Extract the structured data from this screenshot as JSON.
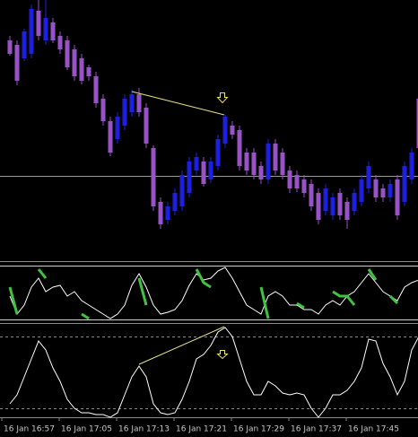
{
  "chart_data": [
    {
      "type": "candlestick",
      "open": [
        245,
        240,
        225,
        230,
        278,
        245,
        265,
        250,
        245,
        235,
        225,
        215,
        205,
        180,
        155,
        135,
        150,
        165,
        185,
        170,
        125,
        65,
        45,
        55,
        60,
        75,
        100,
        110,
        90,
        105,
        130,
        150,
        145,
        120,
        120,
        105,
        90,
        130,
        120,
        100,
        95,
        90,
        85,
        75,
        55,
        50,
        75,
        65,
        55,
        65,
        80,
        90,
        80,
        70,
        90,
        65,
        90,
        180
      ],
      "high": [
        250,
        245,
        258,
        285,
        290,
        290,
        270,
        255,
        250,
        240,
        230,
        218,
        210,
        185,
        160,
        165,
        185,
        190,
        192,
        175,
        128,
        70,
        65,
        80,
        100,
        115,
        120,
        115,
        115,
        140,
        162,
        155,
        150,
        125,
        125,
        110,
        135,
        135,
        125,
        105,
        100,
        95,
        90,
        80,
        85,
        75,
        80,
        70,
        80,
        95,
        110,
        95,
        85,
        90,
        95,
        110,
        125,
        185
      ],
      "low": [
        228,
        195,
        222,
        225,
        245,
        240,
        242,
        230,
        212,
        200,
        196,
        200,
        170,
        150,
        116,
        130,
        145,
        160,
        160,
        125,
        55,
        35,
        40,
        50,
        55,
        70,
        95,
        82,
        86,
        100,
        125,
        135,
        100,
        95,
        90,
        85,
        85,
        95,
        90,
        75,
        76,
        70,
        55,
        40,
        50,
        45,
        45,
        35,
        50,
        60,
        75,
        65,
        65,
        65,
        45,
        60,
        85,
        120
      ],
      "close": [
        230,
        200,
        255,
        280,
        250,
        270,
        245,
        235,
        215,
        205,
        200,
        205,
        175,
        155,
        120,
        160,
        180,
        185,
        165,
        130,
        60,
        40,
        60,
        75,
        95,
        110,
        115,
        85,
        110,
        135,
        160,
        140,
        105,
        100,
        95,
        90,
        130,
        100,
        95,
        80,
        80,
        75,
        60,
        45,
        80,
        70,
        50,
        45,
        75,
        90,
        105,
        70,
        70,
        85,
        50,
        105,
        120,
        125
      ],
      "up_color": "#1f1fe0",
      "down_color": "#9a52c8",
      "ylim": [
        0,
        290
      ],
      "xticks": [
        {
          "value": 0,
          "label": "16 Jan 16:57"
        },
        {
          "value": 8,
          "label": "16 Jan 17:05"
        },
        {
          "value": 16,
          "label": "16 Jan 17:13"
        },
        {
          "value": 24,
          "label": "16 Jan 17:21"
        },
        {
          "value": 32,
          "label": "16 Jan 17:29"
        },
        {
          "value": 40,
          "label": "16 Jan 17:37"
        },
        {
          "value": 48,
          "label": "16 Jan 17:45"
        }
      ]
    },
    {
      "type": "line",
      "ylim": [
        0,
        64
      ],
      "series": [
        {
          "color": "#ffffff",
          "values": [
            28,
            8,
            18,
            38,
            48,
            33,
            38,
            40,
            28,
            33,
            23,
            18,
            13,
            8,
            3,
            8,
            18,
            40,
            53,
            38,
            18,
            8,
            10,
            13,
            23,
            40,
            53,
            46,
            48,
            56,
            60,
            48,
            33,
            18,
            13,
            8,
            28,
            33,
            28,
            18,
            18,
            13,
            13,
            8,
            18,
            23,
            18,
            28,
            33,
            43,
            53,
            43,
            33,
            28,
            23,
            38,
            43,
            46
          ]
        },
        {
          "color": "#3ec43e",
          "values": [
            38,
            8,
            null,
            null,
            58,
            48,
            null,
            null,
            null,
            null,
            8,
            3,
            null,
            null,
            null,
            null,
            null,
            null,
            48,
            18,
            null,
            null,
            null,
            null,
            null,
            null,
            58,
            43,
            38,
            null,
            null,
            null,
            null,
            null,
            null,
            38,
            3,
            null,
            null,
            null,
            20,
            15,
            null,
            8,
            null,
            33,
            28,
            28,
            18,
            null,
            58,
            46,
            null,
            28,
            20,
            null,
            null,
            null
          ]
        }
      ]
    },
    {
      "type": "line",
      "ylim": [
        0,
        102
      ],
      "series": [
        {
          "color": "#ffffff",
          "values": [
            15,
            25,
            45,
            65,
            85,
            75,
            55,
            40,
            20,
            10,
            5,
            5,
            3,
            3,
            0,
            5,
            25,
            45,
            57,
            45,
            15,
            5,
            3,
            5,
            20,
            40,
            65,
            70,
            80,
            95,
            100,
            90,
            65,
            40,
            25,
            25,
            40,
            35,
            27,
            25,
            27,
            25,
            10,
            0,
            10,
            25,
            25,
            30,
            40,
            55,
            87,
            85,
            60,
            45,
            25,
            40,
            75,
            90
          ]
        }
      ]
    }
  ]
}
